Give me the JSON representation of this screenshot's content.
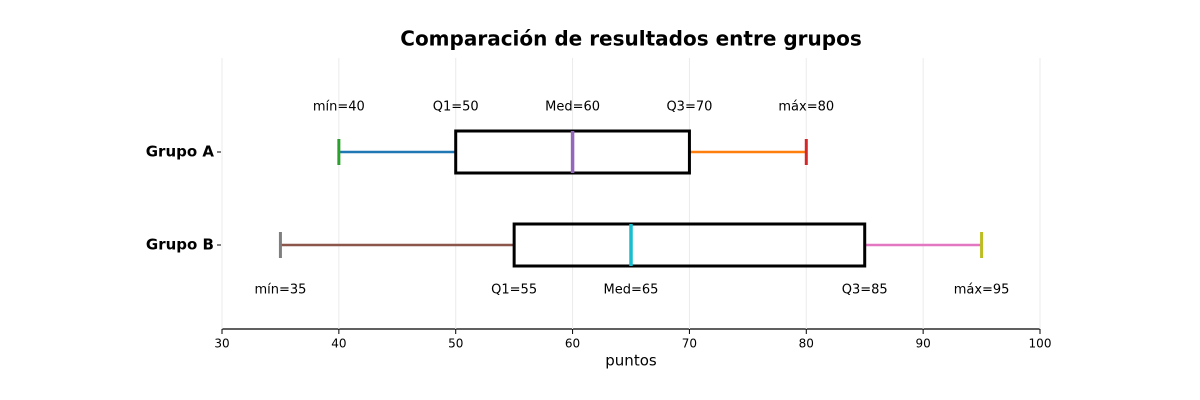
{
  "chart_data": {
    "type": "box",
    "title": "Comparación de resultados entre grupos",
    "xlabel": "puntos",
    "xlim": [
      30,
      100
    ],
    "xticks": [
      30,
      40,
      50,
      60,
      70,
      80,
      90,
      100
    ],
    "grid": true,
    "boxes": [
      {
        "name": "Grupo A",
        "min": 40,
        "q1": 50,
        "median": 60,
        "q3": 70,
        "max": 80,
        "label_position": "above",
        "value_labels": {
          "min": "mín=40",
          "q1": "Q1=50",
          "median": "Med=60",
          "q3": "Q3=70",
          "max": "máx=80"
        },
        "colors": {
          "lower_whisker": "#1f77b4",
          "min_cap": "#2ca02c",
          "median": "#9467bd",
          "upper_whisker": "#ff7f0e",
          "max_cap": "#d62728"
        }
      },
      {
        "name": "Grupo B",
        "min": 35,
        "q1": 55,
        "median": 65,
        "q3": 85,
        "max": 95,
        "label_position": "below",
        "value_labels": {
          "min": "mín=35",
          "q1": "Q1=55",
          "median": "Med=65",
          "q3": "Q3=85",
          "max": "máx=95"
        },
        "colors": {
          "lower_whisker": "#8c564b",
          "min_cap": "#7f7f7f",
          "median": "#17becf",
          "upper_whisker": "#e377c2",
          "max_cap": "#bcbd22"
        }
      }
    ]
  }
}
